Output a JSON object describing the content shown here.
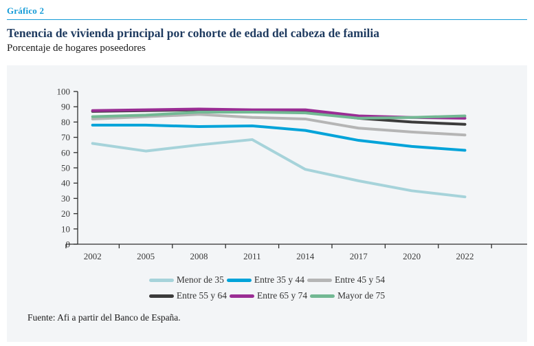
{
  "header": {
    "kicker": "Gráfico 2",
    "title": "Tenencia de vivienda principal por cohorte de edad del cabeza de familia",
    "subtitle": "Porcentaje de hogares poseedores"
  },
  "footer": {
    "source": "Fuente: Afi a partir del Banco de España."
  },
  "colors": {
    "accent_blue": "#149bd7",
    "title_navy": "#1e3a5f",
    "panel_background": "#f3f5f7",
    "axis": "#2e2e2e",
    "tick_label": "#3a3a3a"
  },
  "chart_data": {
    "type": "line",
    "title": "Tenencia de vivienda principal por cohorte de edad del cabeza de familia",
    "subtitle": "Porcentaje de hogares poseedores",
    "categories": [
      "2002",
      "2005",
      "2008",
      "2011",
      "2014",
      "2017",
      "2020",
      "2022"
    ],
    "series": [
      {
        "name": "Menor de 35",
        "color": "#a6d3da",
        "values": [
          66,
          61,
          65,
          68.5,
          49,
          41.5,
          35,
          31
        ]
      },
      {
        "name": "Entre 35 y 44",
        "color": "#00a3d9",
        "values": [
          78,
          78,
          77,
          77.5,
          74.5,
          68,
          64,
          61.5
        ]
      },
      {
        "name": "Entre 45 y 54",
        "color": "#b5b5b5",
        "values": [
          82,
          83.5,
          85,
          83,
          82,
          76,
          73.5,
          71.5
        ]
      },
      {
        "name": "Entre 55 y 64",
        "color": "#3b3b3b",
        "values": [
          87,
          87.5,
          88,
          87.5,
          87,
          82.5,
          80,
          78.5
        ]
      },
      {
        "name": "Entre 65 y 74",
        "color": "#9a2d94",
        "values": [
          87.5,
          88,
          88.5,
          88,
          88,
          84,
          83,
          82.5
        ]
      },
      {
        "name": "Mayor de 75",
        "color": "#72b893",
        "values": [
          83.5,
          84.5,
          86.5,
          86.5,
          86,
          82.5,
          83,
          84
        ]
      }
    ],
    "xlabel": "",
    "ylabel": "",
    "ylim": [
      0,
      100
    ],
    "yticks": [
      0,
      10,
      20,
      30,
      40,
      50,
      60,
      70,
      80,
      90,
      100
    ],
    "grid": false,
    "legend_position": "bottom",
    "legend_rows": 2
  }
}
